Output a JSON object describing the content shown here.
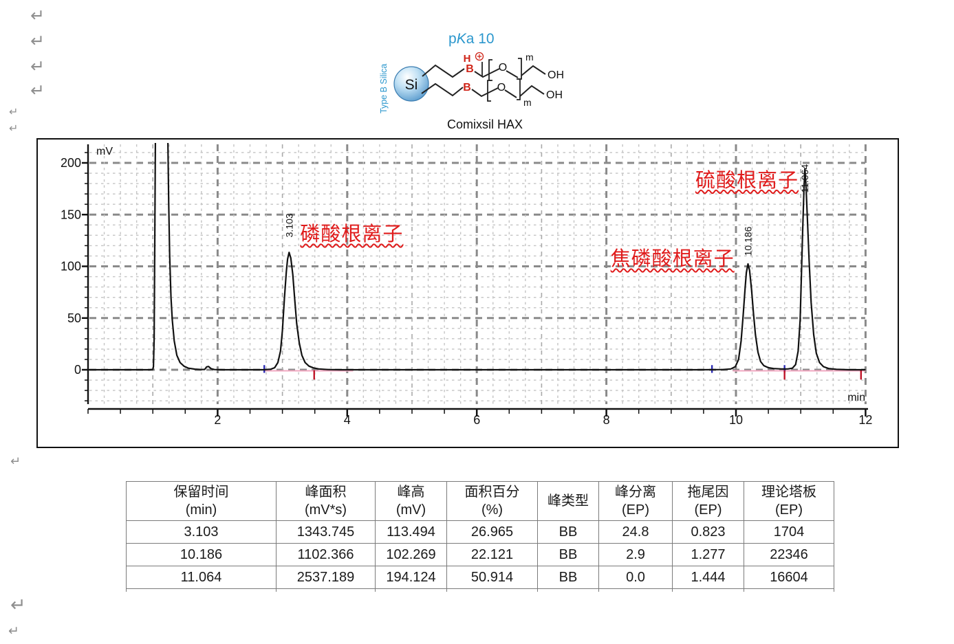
{
  "formatting": {
    "return_mark": "↵"
  },
  "structure": {
    "pka": {
      "p": "p",
      "k": "K",
      "rest": "a 10"
    },
    "silica_type_label": "Type B Silica",
    "si_label": "Si",
    "b_label": "B",
    "h_label": "H",
    "plus_sign": "+",
    "o_label": "O",
    "m_label": "m",
    "oh_label": "OH",
    "caption": "Comixsil HAX",
    "accent_blue": "#2b97cd",
    "accent_red": "#cf2418"
  },
  "chart_data": {
    "type": "line",
    "x_unit": "min",
    "y_unit": "mV",
    "xlim": [
      0,
      12
    ],
    "ylim": [
      -33,
      218
    ],
    "x_ticks": [
      2,
      4,
      6,
      8,
      10,
      12
    ],
    "y_ticks": [
      0,
      50,
      100,
      150,
      200
    ],
    "grid": "dashed",
    "trace_color": "#111111",
    "peaks": [
      {
        "rt": 3.103,
        "rt_label": "3.103",
        "height_mv": 113.494,
        "annotation": "磷酸根离子",
        "label_base_mv": 128
      },
      {
        "rt": 10.186,
        "rt_label": "10.186",
        "height_mv": 102.269,
        "annotation": "焦磷酸根离子",
        "label_base_mv": 110
      },
      {
        "rt": 11.064,
        "rt_label": "11.064",
        "height_mv": 194.124,
        "annotation": "硫酸根离子",
        "label_base_mv": 171
      }
    ],
    "annotations": [
      {
        "text": "磷酸根离子",
        "t": 4.07,
        "mv": 133,
        "color": "#e01b1b"
      },
      {
        "text": "焦磷酸根离子",
        "t": 9.02,
        "mv": 109,
        "color": "#e01b1b"
      },
      {
        "text": "硫酸根离子",
        "t": 10.17,
        "mv": 185,
        "color": "#e01b1b"
      }
    ],
    "integration": {
      "baseline_color": "#f0a7c0",
      "baselines": [
        {
          "t1": 2.73,
          "t2": 4.09
        },
        {
          "t1": 9.95,
          "t2": 12.0
        }
      ],
      "events": [
        {
          "t": 2.72,
          "color": "blue"
        },
        {
          "t": 3.49,
          "color": "red"
        },
        {
          "t": 9.63,
          "color": "blue"
        },
        {
          "t": 10.75,
          "color": "blue"
        },
        {
          "t": 10.75,
          "color": "red"
        },
        {
          "t": 11.93,
          "color": "red"
        }
      ]
    },
    "trace": [
      [
        0,
        0
      ],
      [
        0.95,
        0
      ],
      [
        1.0,
        0.3
      ],
      [
        1.01,
        3
      ],
      [
        1.02,
        30
      ],
      [
        1.03,
        120
      ],
      [
        1.04,
        230
      ],
      [
        1.23,
        230
      ],
      [
        1.245,
        160
      ],
      [
        1.26,
        110
      ],
      [
        1.28,
        70
      ],
      [
        1.3,
        48
      ],
      [
        1.33,
        28
      ],
      [
        1.37,
        14
      ],
      [
        1.42,
        7
      ],
      [
        1.48,
        3.5
      ],
      [
        1.55,
        1.5
      ],
      [
        1.65,
        0.6
      ],
      [
        1.75,
        0.2
      ],
      [
        1.8,
        0.3
      ],
      [
        1.83,
        2.8
      ],
      [
        1.86,
        3.2
      ],
      [
        1.9,
        1
      ],
      [
        1.95,
        0.2
      ],
      [
        2.1,
        0
      ],
      [
        2.7,
        0
      ],
      [
        2.82,
        0.5
      ],
      [
        2.88,
        2
      ],
      [
        2.93,
        7
      ],
      [
        2.97,
        18
      ],
      [
        3.0,
        38
      ],
      [
        3.03,
        68
      ],
      [
        3.06,
        95
      ],
      [
        3.08,
        107
      ],
      [
        3.103,
        113.5
      ],
      [
        3.13,
        108
      ],
      [
        3.16,
        92
      ],
      [
        3.19,
        68
      ],
      [
        3.22,
        45
      ],
      [
        3.26,
        26
      ],
      [
        3.3,
        14
      ],
      [
        3.35,
        7
      ],
      [
        3.41,
        3.5
      ],
      [
        3.48,
        1.8
      ],
      [
        3.56,
        0.8
      ],
      [
        3.7,
        0.2
      ],
      [
        3.9,
        0
      ],
      [
        9.4,
        0
      ],
      [
        9.8,
        0.2
      ],
      [
        9.92,
        0.8
      ],
      [
        9.99,
        3
      ],
      [
        10.04,
        10
      ],
      [
        10.08,
        28
      ],
      [
        10.11,
        52
      ],
      [
        10.14,
        78
      ],
      [
        10.16,
        94
      ],
      [
        10.186,
        102.3
      ],
      [
        10.21,
        96
      ],
      [
        10.24,
        78
      ],
      [
        10.27,
        55
      ],
      [
        10.3,
        34
      ],
      [
        10.34,
        17
      ],
      [
        10.38,
        8
      ],
      [
        10.43,
        4
      ],
      [
        10.5,
        2
      ],
      [
        10.58,
        1.2
      ],
      [
        10.7,
        0.8
      ],
      [
        10.8,
        0.8
      ],
      [
        10.87,
        1.5
      ],
      [
        10.92,
        5
      ],
      [
        10.96,
        18
      ],
      [
        10.99,
        48
      ],
      [
        11.01,
        90
      ],
      [
        11.03,
        135
      ],
      [
        11.05,
        175
      ],
      [
        11.064,
        194.1
      ],
      [
        11.08,
        180
      ],
      [
        11.1,
        150
      ],
      [
        11.13,
        105
      ],
      [
        11.16,
        65
      ],
      [
        11.2,
        34
      ],
      [
        11.24,
        16
      ],
      [
        11.29,
        7
      ],
      [
        11.35,
        3
      ],
      [
        11.43,
        1.2
      ],
      [
        11.55,
        0.4
      ],
      [
        11.75,
        0
      ],
      [
        12,
        0
      ]
    ]
  },
  "table": {
    "headers": [
      [
        "保留时间",
        "(min)"
      ],
      [
        "峰面积",
        "(mV*s)"
      ],
      [
        "峰高",
        "(mV)"
      ],
      [
        "面积百分",
        "(%)"
      ],
      [
        "峰类型",
        ""
      ],
      [
        "峰分离",
        "(EP)"
      ],
      [
        "拖尾因",
        "(EP)"
      ],
      [
        "理论塔板",
        "(EP)"
      ]
    ],
    "rows": [
      [
        "3.103",
        "1343.745",
        "113.494",
        "26.965",
        "BB",
        "24.8",
        "0.823",
        "1704"
      ],
      [
        "10.186",
        "1102.366",
        "102.269",
        "22.121",
        "BB",
        "2.9",
        "1.277",
        "22346"
      ],
      [
        "11.064",
        "2537.189",
        "194.124",
        "50.914",
        "BB",
        "0.0",
        "1.444",
        "16604"
      ]
    ],
    "partial_row": true
  }
}
